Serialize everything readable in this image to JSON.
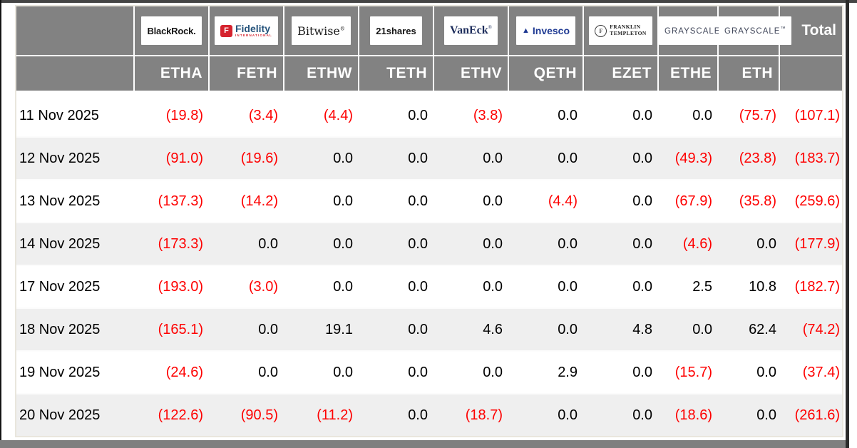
{
  "table": {
    "total_label": "Total",
    "issuers": [
      {
        "name": "BlackRock",
        "ticker": "ETHA",
        "logo": {
          "kind": "blackrock",
          "text": "BlackRock."
        }
      },
      {
        "name": "Fidelity International",
        "ticker": "FETH",
        "logo": {
          "kind": "fidelity",
          "badge": "F",
          "text": "Fidelity",
          "sub": "INTERNATIONAL"
        }
      },
      {
        "name": "Bitwise",
        "ticker": "ETHW",
        "logo": {
          "kind": "bitwise",
          "text": "Bitwise",
          "mark": "®"
        }
      },
      {
        "name": "21shares",
        "ticker": "TETH",
        "logo": {
          "kind": "shares21",
          "text": "21shares"
        }
      },
      {
        "name": "VanEck",
        "ticker": "ETHV",
        "logo": {
          "kind": "vaneck",
          "text": "VanEck",
          "mark": "®"
        }
      },
      {
        "name": "Invesco",
        "ticker": "QETH",
        "logo": {
          "kind": "invesco",
          "icon": "▲",
          "text": "Invesco"
        }
      },
      {
        "name": "Franklin Templeton",
        "ticker": "EZET",
        "logo": {
          "kind": "franklin",
          "seal": "F",
          "line1": "FRANKLIN",
          "line2": "TEMPLETON"
        }
      },
      {
        "name": "Grayscale",
        "ticker": "ETHE",
        "logo": {
          "kind": "grayscale",
          "text": "GRAYSCALE",
          "mark": "™"
        }
      },
      {
        "name": "Grayscale",
        "ticker": "ETH",
        "logo": {
          "kind": "grayscale",
          "text": "GRAYSCALE",
          "mark": "™"
        }
      }
    ],
    "rows": [
      {
        "date": "11 Nov 2025",
        "values": [
          "(19.8)",
          "(3.4)",
          "(4.4)",
          "0.0",
          "(3.8)",
          "0.0",
          "0.0",
          "0.0",
          "(75.7)"
        ],
        "total": "(107.1)"
      },
      {
        "date": "12 Nov 2025",
        "values": [
          "(91.0)",
          "(19.6)",
          "0.0",
          "0.0",
          "0.0",
          "0.0",
          "0.0",
          "(49.3)",
          "(23.8)"
        ],
        "total": "(183.7)"
      },
      {
        "date": "13 Nov 2025",
        "values": [
          "(137.3)",
          "(14.2)",
          "0.0",
          "0.0",
          "0.0",
          "(4.4)",
          "0.0",
          "(67.9)",
          "(35.8)"
        ],
        "total": "(259.6)"
      },
      {
        "date": "14 Nov 2025",
        "values": [
          "(173.3)",
          "0.0",
          "0.0",
          "0.0",
          "0.0",
          "0.0",
          "0.0",
          "(4.6)",
          "0.0"
        ],
        "total": "(177.9)"
      },
      {
        "date": "17 Nov 2025",
        "values": [
          "(193.0)",
          "(3.0)",
          "0.0",
          "0.0",
          "0.0",
          "0.0",
          "0.0",
          "2.5",
          "10.8"
        ],
        "total": "(182.7)"
      },
      {
        "date": "18 Nov 2025",
        "values": [
          "(165.1)",
          "0.0",
          "19.1",
          "0.0",
          "4.6",
          "0.0",
          "4.8",
          "0.0",
          "62.4"
        ],
        "total": "(74.2)"
      },
      {
        "date": "19 Nov 2025",
        "values": [
          "(24.6)",
          "0.0",
          "0.0",
          "0.0",
          "0.0",
          "2.9",
          "0.0",
          "(15.7)",
          "0.0"
        ],
        "total": "(37.4)"
      },
      {
        "date": "20 Nov 2025",
        "values": [
          "(122.6)",
          "(90.5)",
          "(11.2)",
          "0.0",
          "(18.7)",
          "0.0",
          "0.0",
          "(18.6)",
          "0.0"
        ],
        "total": "(261.6)"
      }
    ]
  },
  "colors": {
    "header_gray": "#828282",
    "negative_red": "#fe0000",
    "alt_row": "#efefef",
    "top_bar": "#454545",
    "bottom_bar": "#7f7f7f"
  }
}
